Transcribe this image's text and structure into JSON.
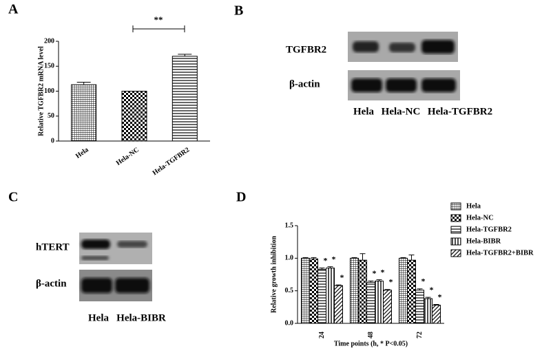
{
  "panel_labels": [
    "A",
    "B",
    "C",
    "D"
  ],
  "chart_data": [
    {
      "type": "bar",
      "ylabel": "Relative TGFBR2 mRNA level",
      "annotation": "**",
      "categories": [
        "Hela",
        "Hela-NC",
        "Hela-TGFBR2"
      ],
      "values": [
        113,
        100,
        170
      ],
      "errors": [
        5,
        0,
        4
      ],
      "color": "#000000",
      "ylim": [
        0,
        200
      ],
      "yticks": [
        0,
        50,
        100,
        150,
        200
      ]
    },
    {
      "type": "grouped_bar",
      "ylabel": "Relative growth inhibition",
      "xlabel": "Time points (h, * P<0.05)",
      "categories": [
        "24",
        "48",
        "72"
      ],
      "series": [
        {
          "name": "Hela",
          "color": "#000000",
          "values": [
            1.0,
            1.0,
            1.0
          ],
          "errors": [
            0.01,
            0.01,
            0.01
          ]
        },
        {
          "name": "Hela-NC",
          "color": "#000000",
          "values": [
            0.99,
            0.97,
            0.97
          ],
          "errors": [
            0.02,
            0.1,
            0.08
          ]
        },
        {
          "name": "Hela-TGFBR2",
          "color": "#000000",
          "values": [
            0.83,
            0.63,
            0.51
          ],
          "errors": [
            0.02,
            0.02,
            0.02
          ],
          "annotations": [
            "*",
            "*",
            "*"
          ]
        },
        {
          "name": "Hela-BIBR",
          "color": "#000000",
          "values": [
            0.85,
            0.65,
            0.38
          ],
          "errors": [
            0.02,
            0.02,
            0.02
          ],
          "annotations": [
            "*",
            "*",
            "*"
          ]
        },
        {
          "name": "Hela-TGFBR2+BIBR",
          "color": "#000000",
          "values": [
            0.58,
            0.51,
            0.28
          ],
          "errors": [
            0.01,
            0.01,
            0.01
          ],
          "annotations": [
            "*",
            "*",
            "*"
          ]
        }
      ],
      "ylim": [
        0,
        1.5
      ],
      "yticks": [
        {
          "value": 0,
          "label": "0.0"
        },
        0.5,
        {
          "value": 1,
          "label": "1.0"
        },
        1.5
      ]
    }
  ],
  "blots": [
    {
      "rows": [
        "TGFBR2",
        "β-actin"
      ],
      "lanes": [
        "Hela",
        "Hela-NC",
        "Hela-TGFBR2"
      ]
    },
    {
      "rows": [
        "hTERT",
        "β-actin"
      ],
      "lanes": [
        "Hela",
        "Hela-BIBR"
      ]
    }
  ]
}
